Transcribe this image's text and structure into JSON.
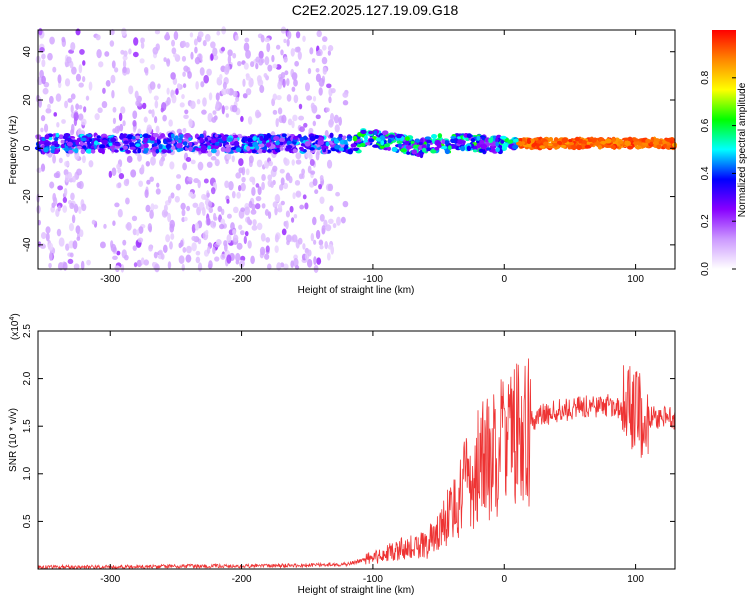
{
  "title": "C2E2.2025.127.19.09.G18",
  "chart_data": [
    {
      "type": "heatmap",
      "xlabel": "Height of straight line (km)",
      "ylabel": "Frequency (Hz)",
      "xlim": [
        -355,
        130
      ],
      "ylim": [
        -50,
        49
      ],
      "xticks": [
        -300,
        -200,
        -100,
        0,
        100
      ],
      "yticks": [
        -40,
        -20,
        0,
        20,
        40
      ],
      "colorbar": {
        "label": "Normalized spectral amplitude",
        "range": [
          0,
          1
        ],
        "ticks": [
          "0.0",
          "0.2",
          "0.4",
          "0.6",
          "0.8"
        ],
        "colors": [
          "#ffffff",
          "#cc99ff",
          "#8800ff",
          "#0000ff",
          "#00ffff",
          "#00ff00",
          "#ffff00",
          "#ff8800",
          "#ff0000"
        ]
      },
      "features": {
        "main_band_center_hz": 2,
        "noise_regions_km": [
          [
            -355,
            -320
          ],
          [
            -300,
            -130
          ]
        ]
      }
    },
    {
      "type": "line",
      "xlabel": "Height of straight line (km)",
      "ylabel": "SNR (10 * v/v)",
      "yscale_label": "(x10",
      "yscale_exp": "4",
      "xlim": [
        -355,
        130
      ],
      "ylim": [
        0,
        2.5
      ],
      "xticks": [
        -300,
        -200,
        -100,
        0,
        100
      ],
      "yticks": [
        0.5,
        1.0,
        1.5,
        2.0,
        2.5
      ],
      "ytick_labels": [
        "0.5",
        "1.0",
        "1.5",
        "2.0",
        "2.5"
      ],
      "color": "#ee3333",
      "series": [
        {
          "x": [
            -355,
            -300,
            -250,
            -200,
            -150,
            -120,
            -100,
            -80,
            -60,
            -50,
            -40,
            -30,
            -20,
            -10,
            0,
            10,
            20,
            30,
            40,
            60,
            80,
            90,
            100,
            110,
            130
          ],
          "y": [
            0.02,
            0.02,
            0.03,
            0.03,
            0.04,
            0.05,
            0.12,
            0.2,
            0.25,
            0.4,
            0.6,
            0.85,
            1.05,
            1.2,
            1.3,
            1.4,
            1.55,
            1.62,
            1.66,
            1.7,
            1.72,
            1.65,
            1.7,
            1.6,
            1.58
          ]
        }
      ]
    }
  ]
}
